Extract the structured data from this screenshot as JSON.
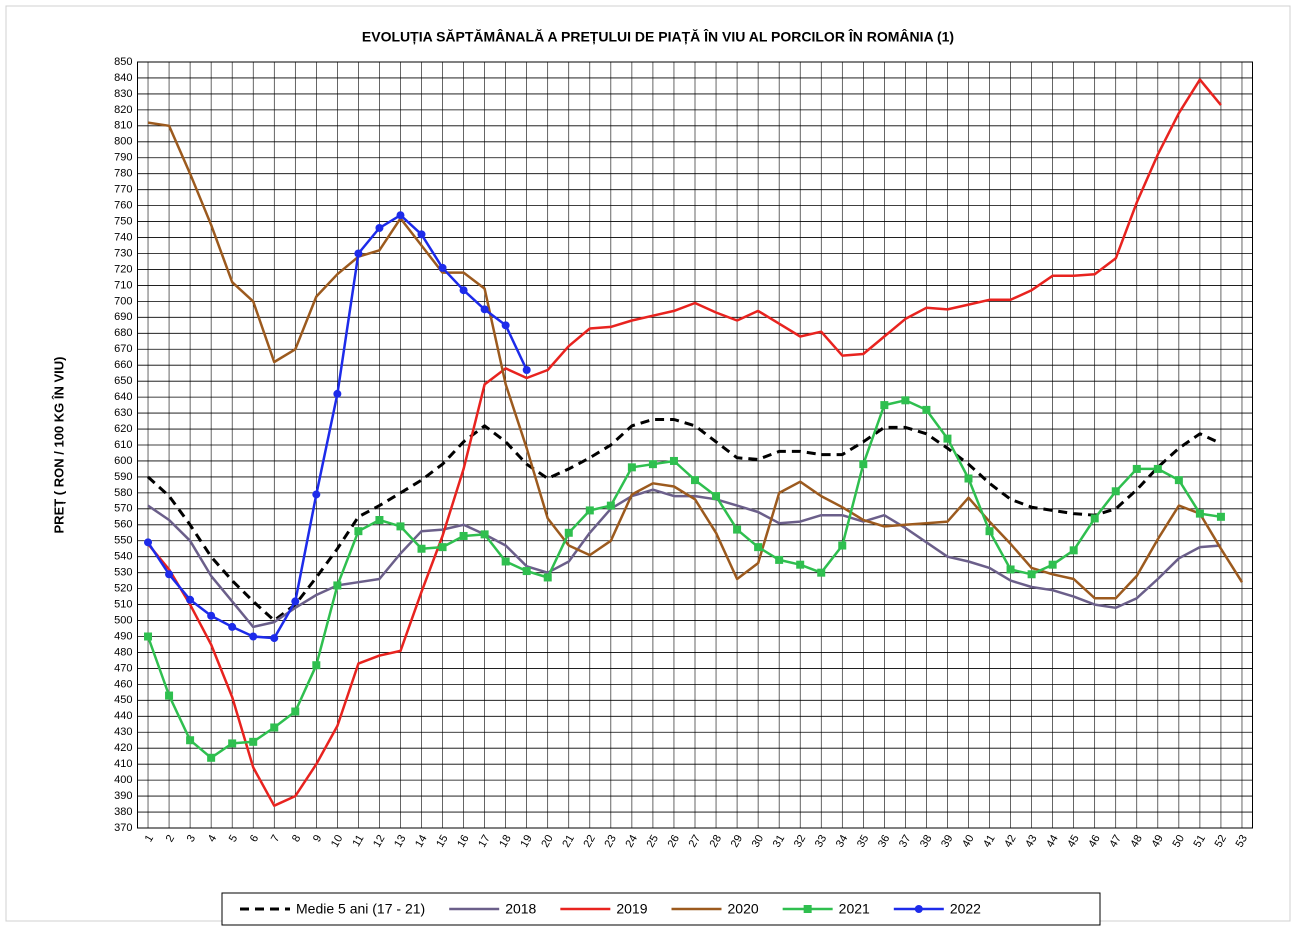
{
  "chart_data": {
    "type": "line",
    "title": "EVOLUȚIA SĂPTĂMÂNALĂ A PREȚULUI  DE PIAȚĂ ÎN VIU AL PORCILOR ÎN ROMÂNIA (1)",
    "y_label": "PREȚ ( RON / 100 KG ÎN VIU)",
    "categories": [
      "1",
      "2",
      "3",
      "4",
      "5",
      "6",
      "7",
      "8",
      "9",
      "10",
      "11",
      "12",
      "13",
      "14",
      "15",
      "16",
      "17",
      "18",
      "19",
      "20",
      "21",
      "22",
      "23",
      "24",
      "25",
      "26",
      "27",
      "28",
      "29",
      "30",
      "31",
      "32",
      "33",
      "34",
      "35",
      "36",
      "37",
      "38",
      "39",
      "40",
      "41",
      "42",
      "43",
      "44",
      "45",
      "46",
      "47",
      "48",
      "49",
      "50",
      "51",
      "52",
      "53"
    ],
    "ylim": [
      370,
      850
    ],
    "yticks": [
      370,
      380,
      390,
      400,
      410,
      420,
      430,
      440,
      450,
      460,
      470,
      480,
      490,
      500,
      510,
      520,
      530,
      540,
      550,
      560,
      570,
      580,
      590,
      600,
      610,
      620,
      630,
      640,
      650,
      660,
      670,
      680,
      690,
      700,
      710,
      720,
      730,
      740,
      750,
      760,
      770,
      780,
      790,
      800,
      810,
      820,
      830,
      840,
      850
    ],
    "grid": true,
    "legend": "bottom",
    "series": [
      {
        "name": "Medie 5 ani (17 - 21)",
        "color": "#000000",
        "dash": true,
        "marker": "none",
        "values": [
          590,
          578,
          560,
          540,
          525,
          512,
          500,
          510,
          527,
          545,
          565,
          572,
          580,
          588,
          598,
          612,
          622,
          612,
          598,
          589,
          595,
          602,
          610,
          622,
          626,
          626,
          622,
          612,
          602,
          601,
          606,
          606,
          604,
          604,
          612,
          621,
          621,
          617,
          608,
          598,
          586,
          576,
          571,
          569,
          567,
          566,
          570,
          582,
          596,
          608,
          617,
          611,
          null
        ]
      },
      {
        "name": "2018",
        "color": "#6b5f8a",
        "dash": false,
        "marker": "none",
        "values": [
          572,
          563,
          550,
          528,
          512,
          496,
          499,
          508,
          516,
          522,
          524,
          526,
          542,
          556,
          557,
          560,
          554,
          547,
          534,
          530,
          537,
          555,
          570,
          578,
          582,
          578,
          578,
          576,
          572,
          568,
          561,
          562,
          566,
          566,
          562,
          566,
          558,
          549,
          540,
          537,
          533,
          525,
          521,
          519,
          515,
          510,
          508,
          514,
          526,
          539,
          546,
          547,
          null
        ]
      },
      {
        "name": "2019",
        "color": "#e8231f",
        "dash": false,
        "marker": "none",
        "values": [
          548,
          532,
          510,
          485,
          452,
          408,
          384,
          390,
          410,
          434,
          473,
          478,
          481,
          518,
          553,
          595,
          648,
          658,
          652,
          657,
          672,
          683,
          684,
          688,
          691,
          694,
          699,
          693,
          688,
          694,
          686,
          678,
          681,
          666,
          667,
          678,
          689,
          696,
          695,
          698,
          701,
          701,
          707,
          716,
          716,
          717,
          727,
          762,
          792,
          818,
          839,
          823,
          null
        ]
      },
      {
        "name": "2020",
        "color": "#9c5a1e",
        "dash": false,
        "marker": "none",
        "values": [
          812,
          810,
          780,
          748,
          712,
          700,
          662,
          670,
          703,
          717,
          728,
          732,
          752,
          735,
          718,
          718,
          708,
          648,
          608,
          564,
          547,
          541,
          550,
          579,
          586,
          584,
          576,
          555,
          526,
          536,
          580,
          587,
          578,
          571,
          563,
          559,
          560,
          561,
          562,
          577,
          562,
          548,
          533,
          529,
          526,
          514,
          514,
          528,
          551,
          572,
          567,
          545,
          524
        ]
      },
      {
        "name": "2021",
        "color": "#2fbf4f",
        "dash": false,
        "marker": "square",
        "values": [
          490,
          453,
          425,
          414,
          423,
          424,
          433,
          443,
          472,
          522,
          556,
          563,
          559,
          545,
          546,
          553,
          554,
          537,
          531,
          527,
          555,
          569,
          572,
          596,
          598,
          600,
          588,
          578,
          557,
          546,
          538,
          535,
          530,
          547,
          598,
          635,
          638,
          632,
          614,
          589,
          556,
          532,
          529,
          535,
          544,
          564,
          581,
          595,
          595,
          588,
          567,
          565,
          null
        ]
      },
      {
        "name": "2022",
        "color": "#1d2bea",
        "dash": false,
        "marker": "circle",
        "values": [
          549,
          529,
          513,
          503,
          496,
          490,
          489,
          512,
          579,
          642,
          730,
          746,
          754,
          742,
          721,
          707,
          695,
          685,
          657,
          null,
          null,
          null,
          null,
          null,
          null,
          null,
          null,
          null,
          null,
          null,
          null,
          null,
          null,
          null,
          null,
          null,
          null,
          null,
          null,
          null,
          null,
          null,
          null,
          null,
          null,
          null,
          null,
          null,
          null,
          null,
          null,
          null,
          null
        ]
      }
    ]
  }
}
